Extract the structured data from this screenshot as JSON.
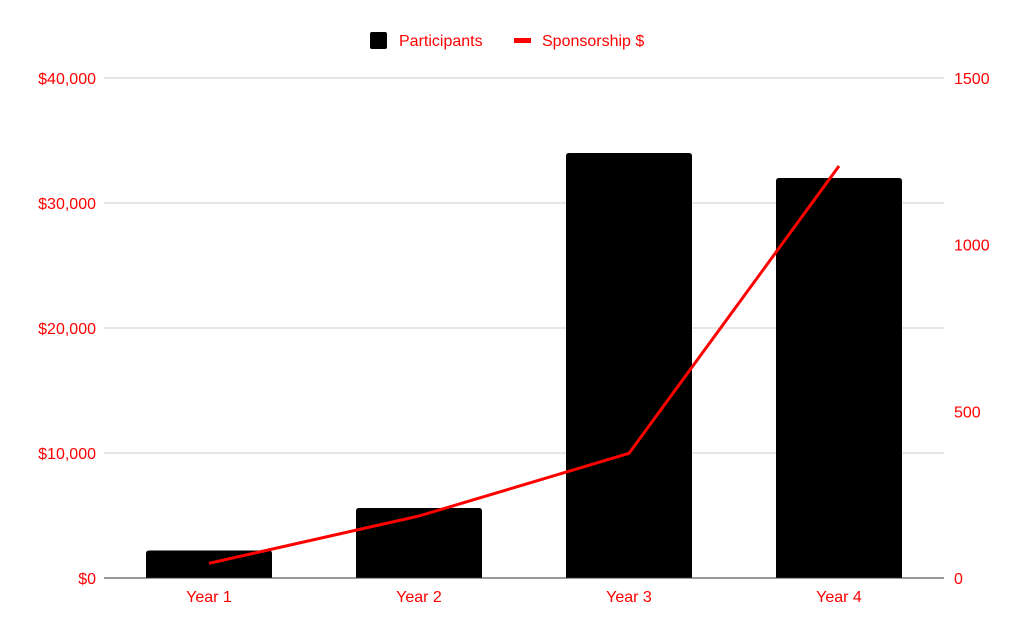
{
  "chart_data": {
    "type": "bar+line",
    "title": "",
    "categories": [
      "Year 1",
      "Year 2",
      "Year 3",
      "Year 4"
    ],
    "series": [
      {
        "name": "Participants",
        "type": "bar",
        "axis": "left",
        "color": "#000000",
        "values": [
          2200,
          5600,
          34000,
          32000
        ]
      },
      {
        "name": "Sponsorship $",
        "type": "line",
        "axis": "right",
        "color": "#ff0000",
        "values": [
          44,
          186,
          374,
          1236
        ]
      }
    ],
    "left_axis": {
      "ylim": [
        0,
        40000
      ],
      "ticks": [
        0,
        10000,
        20000,
        30000,
        40000
      ],
      "tick_labels": [
        "$0",
        "$10,000",
        "$20,000",
        "$30,000",
        "$40,000"
      ]
    },
    "right_axis": {
      "ylim": [
        0,
        1500
      ],
      "ticks": [
        0,
        500,
        1000,
        1500
      ],
      "tick_labels": [
        "0",
        "500",
        "1000",
        "1500"
      ]
    },
    "xlabel": "",
    "ylabel": "",
    "grid": true,
    "legend": "top-center",
    "label_color": "#ff0000"
  }
}
